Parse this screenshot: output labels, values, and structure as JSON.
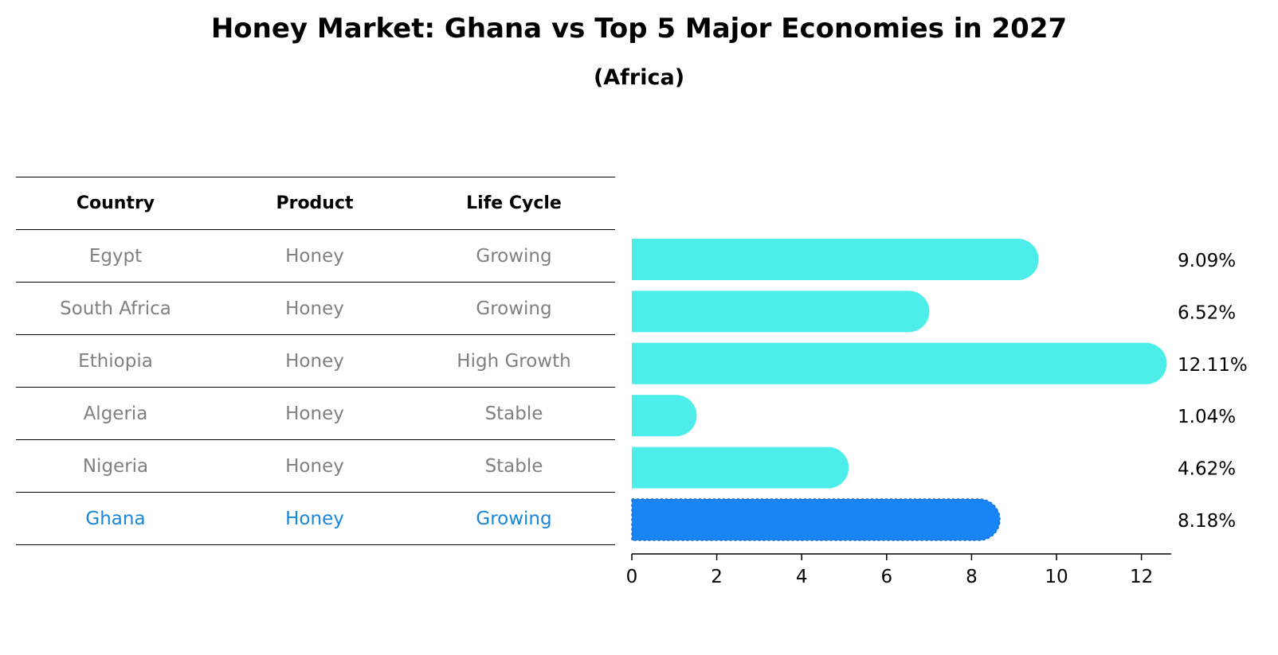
{
  "chart_data": {
    "type": "bar",
    "orientation": "horizontal",
    "title": "Honey Market: Ghana vs Top 5 Major Economies in 2027",
    "subtitle": "(Africa)",
    "table": {
      "columns": [
        "Country",
        "Product",
        "Life Cycle"
      ],
      "rows": [
        [
          "Egypt",
          "Honey",
          "Growing"
        ],
        [
          "South Africa",
          "Honey",
          "Growing"
        ],
        [
          "Ethiopia",
          "Honey",
          "High Growth"
        ],
        [
          "Algeria",
          "Honey",
          "Stable"
        ],
        [
          "Nigeria",
          "Honey",
          "Stable"
        ],
        [
          "Ghana",
          "Honey",
          "Growing"
        ]
      ],
      "highlight_row": 5
    },
    "categories": [
      "Egypt",
      "South Africa",
      "Ethiopia",
      "Algeria",
      "Nigeria",
      "Ghana"
    ],
    "values": [
      9.09,
      6.52,
      12.11,
      1.04,
      4.62,
      8.18
    ],
    "labels": [
      "9.09%",
      "6.52%",
      "12.11%",
      "1.04%",
      "4.62%",
      "8.18%"
    ],
    "xticks": [
      "0",
      "2",
      "4",
      "6",
      "8",
      "10",
      "12"
    ],
    "xlim": [
      0,
      12.7
    ],
    "colors": {
      "bar": "#4deeea",
      "highlight": "#1984f5",
      "highlight_text": "#1a86d8"
    }
  }
}
